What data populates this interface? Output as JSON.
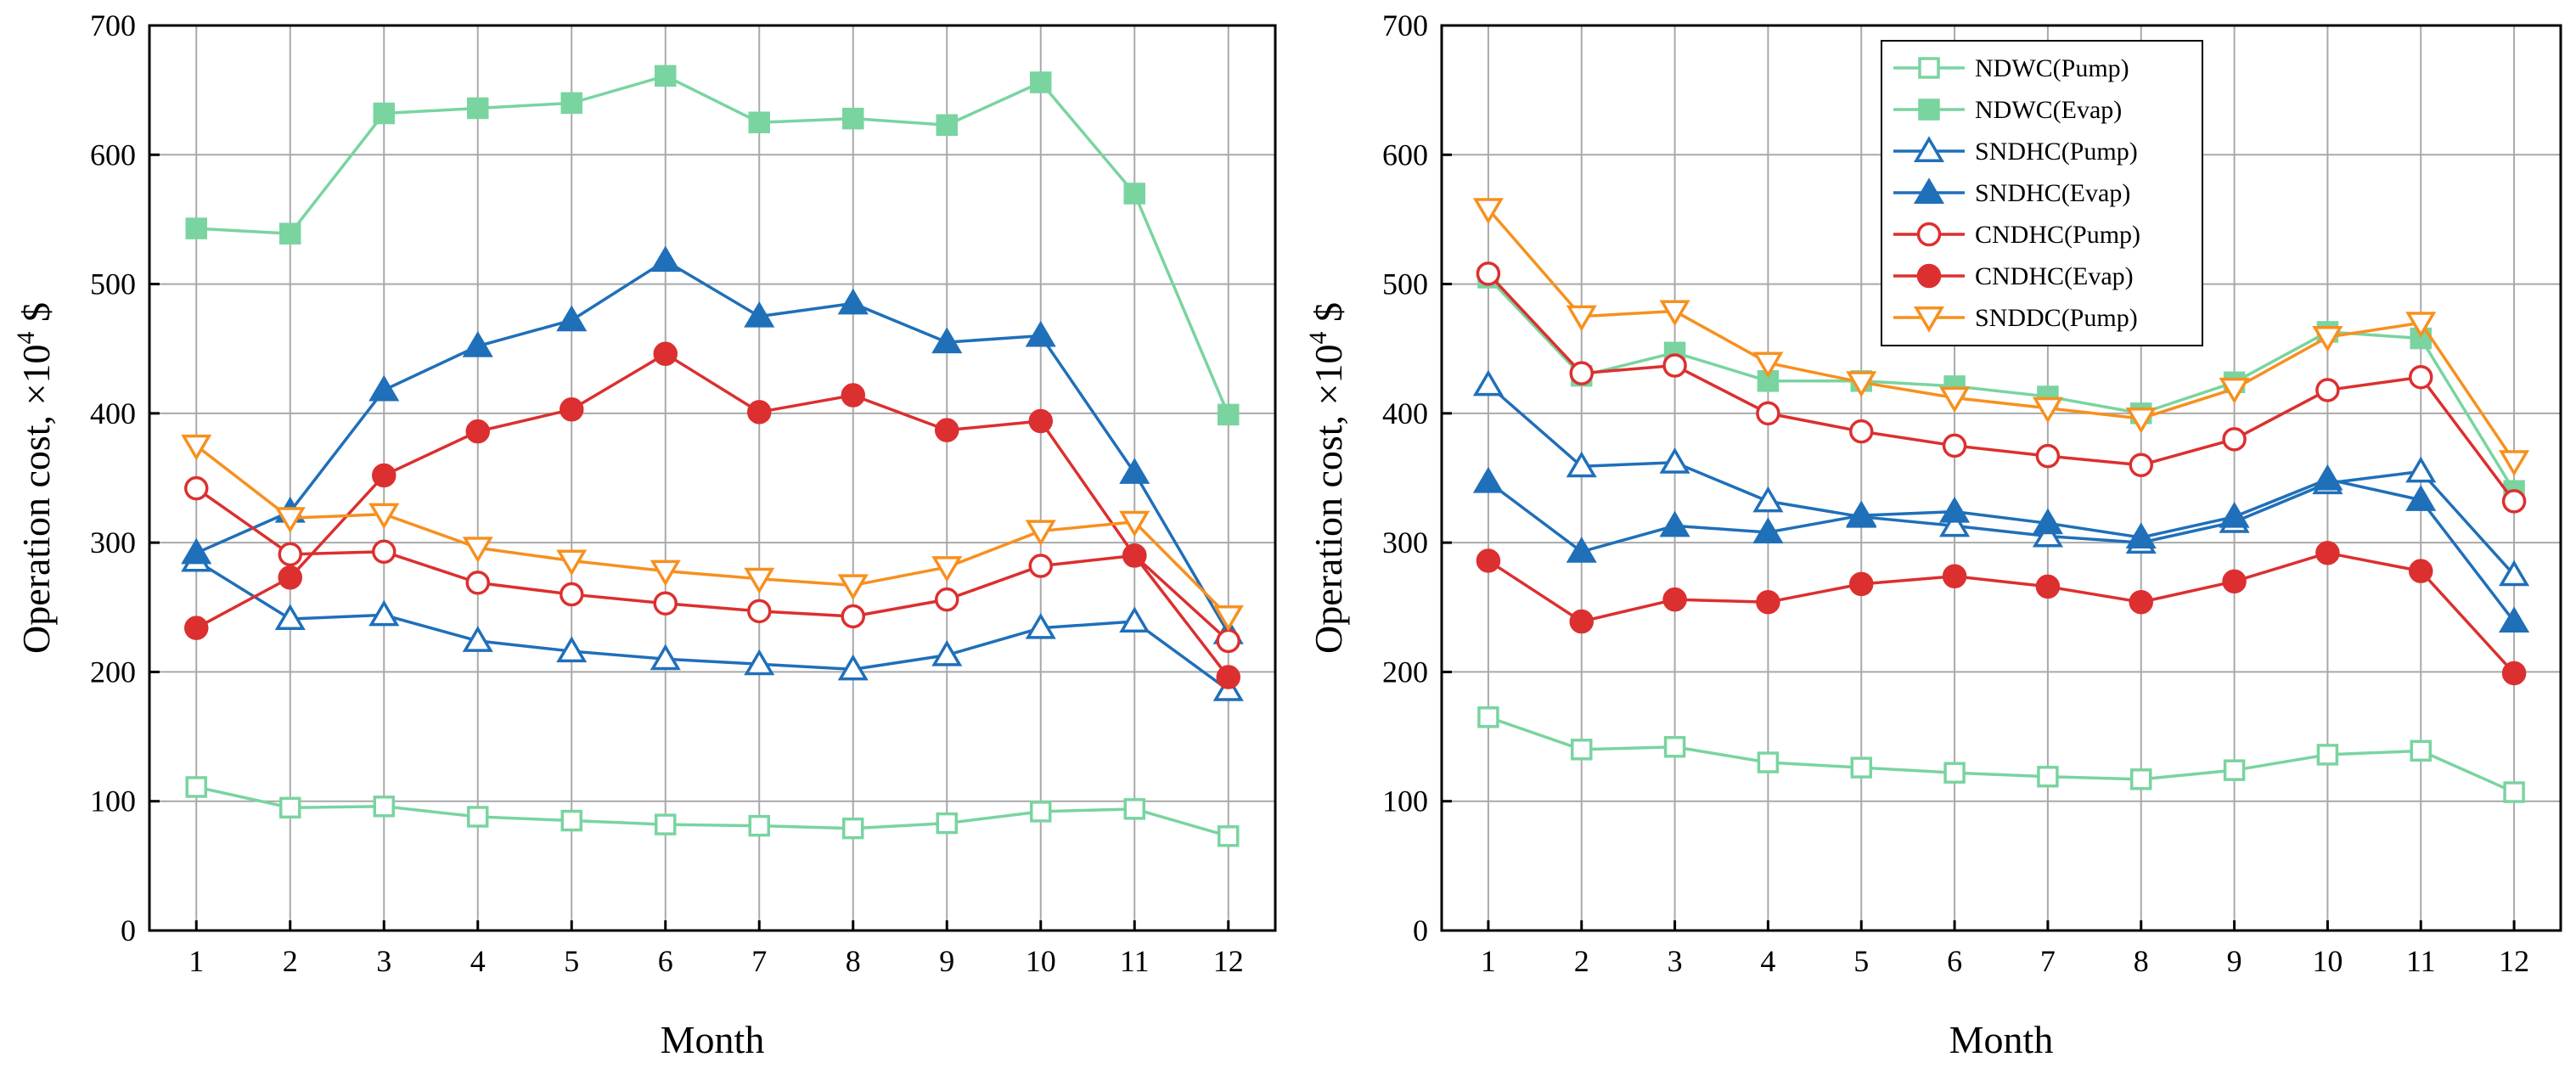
{
  "chart_data": [
    {
      "type": "line",
      "xlabel": "Month",
      "ylabel": "Operation cost, ×10",
      "ylabel_sup": "4",
      "ylabel_suffix": " $",
      "xlim": [
        0.5,
        12.5
      ],
      "ylim": [
        0,
        700
      ],
      "x": [
        1,
        2,
        3,
        4,
        5,
        6,
        7,
        8,
        9,
        10,
        11,
        12
      ],
      "y_ticks": [
        0,
        100,
        200,
        300,
        400,
        500,
        600,
        700
      ],
      "grid": true,
      "legend": "none",
      "series": [
        {
          "name": "NDWC(Pump)",
          "color": "#79d4a0",
          "marker": "square-open",
          "values": [
            111,
            95,
            96,
            88,
            85,
            82,
            81,
            79,
            83,
            92,
            94,
            73
          ]
        },
        {
          "name": "NDWC(Evap)",
          "color": "#79d4a0",
          "marker": "square-filled",
          "values": [
            543,
            539,
            632,
            636,
            640,
            661,
            625,
            628,
            623,
            656,
            570,
            399
          ]
        },
        {
          "name": "SNDHC(Pump)",
          "color": "#1f6fb9",
          "marker": "triangle-open",
          "values": [
            286,
            241,
            244,
            224,
            216,
            210,
            206,
            202,
            213,
            234,
            239,
            186
          ]
        },
        {
          "name": "SNDHC(Evap)",
          "color": "#1f6fb9",
          "marker": "triangle-filled",
          "values": [
            292,
            324,
            418,
            452,
            472,
            518,
            475,
            485,
            455,
            460,
            354,
            230
          ]
        },
        {
          "name": "CNDHC(Pump)",
          "color": "#dc2f2f",
          "marker": "circle-open",
          "values": [
            342,
            291,
            293,
            269,
            260,
            253,
            247,
            243,
            256,
            282,
            290,
            224
          ]
        },
        {
          "name": "CNDHC(Evap)",
          "color": "#dc2f2f",
          "marker": "circle-filled",
          "values": [
            234,
            273,
            352,
            386,
            403,
            446,
            401,
            414,
            387,
            394,
            290,
            196
          ]
        },
        {
          "name": "SNDDC(Pump)",
          "color": "#f7901e",
          "marker": "triangle-down-open",
          "values": [
            375,
            319,
            322,
            296,
            286,
            278,
            272,
            267,
            281,
            309,
            316,
            243
          ]
        }
      ]
    },
    {
      "type": "line",
      "xlabel": "Month",
      "ylabel": "Operation cost, ×10",
      "ylabel_sup": "4",
      "ylabel_suffix": " $",
      "xlim": [
        0.5,
        12.5
      ],
      "ylim": [
        0,
        700
      ],
      "x": [
        1,
        2,
        3,
        4,
        5,
        6,
        7,
        8,
        9,
        10,
        11,
        12
      ],
      "y_ticks": [
        0,
        100,
        200,
        300,
        400,
        500,
        600,
        700
      ],
      "grid": true,
      "legend": "top-center",
      "series": [
        {
          "name": "NDWC(Pump)",
          "color": "#79d4a0",
          "marker": "square-open",
          "values": [
            165,
            140,
            142,
            130,
            126,
            122,
            119,
            117,
            124,
            136,
            139,
            107
          ]
        },
        {
          "name": "NDWC(Evap)",
          "color": "#79d4a0",
          "marker": "square-filled",
          "values": [
            505,
            429,
            447,
            425,
            425,
            421,
            413,
            400,
            424,
            463,
            458,
            340
          ]
        },
        {
          "name": "SNDHC(Pump)",
          "color": "#1f6fb9",
          "marker": "triangle-open",
          "values": [
            422,
            359,
            362,
            332,
            320,
            313,
            305,
            300,
            316,
            346,
            355,
            275
          ]
        },
        {
          "name": "SNDHC(Evap)",
          "color": "#1f6fb9",
          "marker": "triangle-filled",
          "values": [
            347,
            293,
            313,
            308,
            321,
            324,
            315,
            304,
            320,
            349,
            333,
            239
          ]
        },
        {
          "name": "CNDHC(Pump)",
          "color": "#dc2f2f",
          "marker": "circle-open",
          "values": [
            508,
            431,
            437,
            400,
            386,
            375,
            367,
            360,
            380,
            418,
            428,
            332
          ]
        },
        {
          "name": "CNDHC(Evap)",
          "color": "#dc2f2f",
          "marker": "circle-filled",
          "values": [
            286,
            239,
            256,
            254,
            268,
            274,
            266,
            254,
            270,
            292,
            278,
            199
          ]
        },
        {
          "name": "SNDDC(Pump)",
          "color": "#f7901e",
          "marker": "triangle-down-open",
          "values": [
            558,
            475,
            479,
            439,
            424,
            412,
            404,
            396,
            419,
            459,
            470,
            363
          ]
        }
      ]
    }
  ]
}
